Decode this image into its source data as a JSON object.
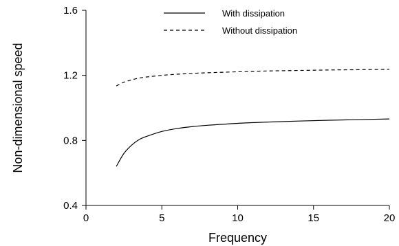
{
  "chart_data": {
    "type": "line",
    "title": "",
    "xlabel": "Frequency",
    "ylabel": "Non-dimensional speed",
    "xlim": [
      0,
      20
    ],
    "ylim": [
      0.4,
      1.6
    ],
    "xticks": [
      0,
      5,
      10,
      15,
      20
    ],
    "yticks": [
      0.4,
      0.8,
      1.2,
      1.6
    ],
    "xtick_labels": [
      "0",
      "5",
      "10",
      "15",
      "20"
    ],
    "ytick_labels": [
      "0.4",
      "0.8",
      "1.2",
      "1.6"
    ],
    "grid": false,
    "legend": {
      "placement": "top-right"
    },
    "series": [
      {
        "name": "With dissipation",
        "line_style": "solid",
        "color": "#000000",
        "x": [
          2,
          2.5,
          3,
          3.5,
          4,
          5,
          6,
          7,
          8,
          10,
          12,
          14,
          16,
          18,
          20
        ],
        "y": [
          0.64,
          0.72,
          0.77,
          0.805,
          0.825,
          0.855,
          0.873,
          0.885,
          0.893,
          0.905,
          0.913,
          0.919,
          0.924,
          0.928,
          0.932
        ]
      },
      {
        "name": "Without dissipation",
        "line_style": "dashed",
        "color": "#000000",
        "x": [
          2,
          2.5,
          3,
          3.5,
          4,
          5,
          6,
          7,
          8,
          10,
          12,
          14,
          16,
          18,
          20
        ],
        "y": [
          1.135,
          1.158,
          1.172,
          1.183,
          1.19,
          1.2,
          1.207,
          1.212,
          1.216,
          1.222,
          1.227,
          1.23,
          1.233,
          1.235,
          1.237
        ]
      }
    ]
  }
}
